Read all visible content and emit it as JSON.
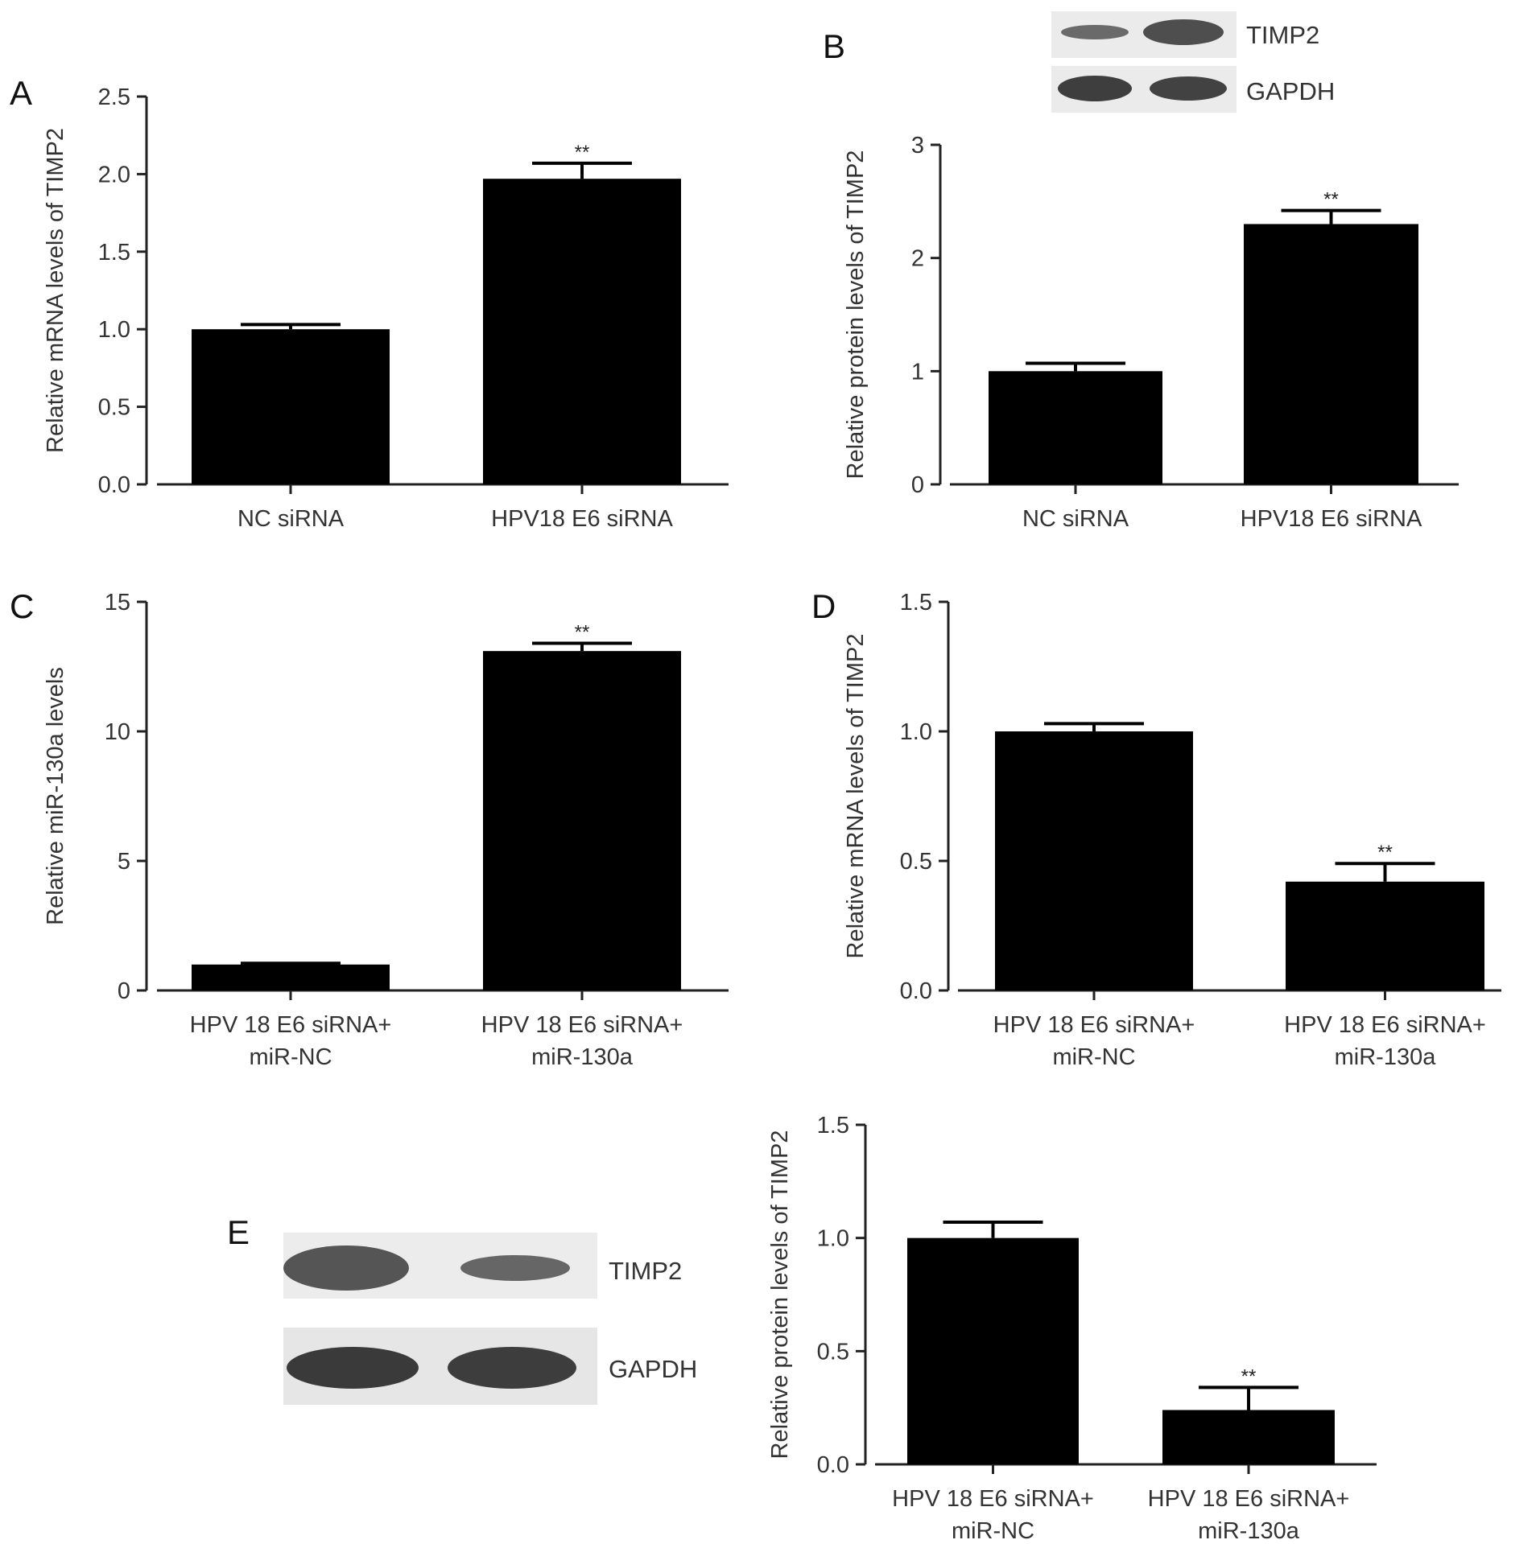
{
  "chart_data": [
    {
      "panel": "A",
      "type": "bar",
      "categories": [
        [
          "NC siRNA"
        ],
        [
          "HPV18 E6 siRNA"
        ]
      ],
      "values": [
        1.0,
        1.97
      ],
      "errors": [
        0.03,
        0.1
      ],
      "significance": [
        "",
        "**"
      ],
      "ylabel": "Relative mRNA levels of TIMP2",
      "ylim": [
        0,
        2.5
      ],
      "yticks": [
        "0.0",
        "0.5",
        "1.0",
        "1.5",
        "2.0",
        "2.5"
      ]
    },
    {
      "panel": "B",
      "type": "bar",
      "categories": [
        [
          "NC siRNA"
        ],
        [
          "HPV18 E6 siRNA"
        ]
      ],
      "values": [
        1.0,
        2.3
      ],
      "errors": [
        0.07,
        0.12
      ],
      "significance": [
        "",
        "**"
      ],
      "ylabel": "Relative protein levels of TIMP2",
      "ylim": [
        0,
        3
      ],
      "yticks": [
        "0",
        "1",
        "2",
        "3"
      ],
      "blot": [
        "TIMP2",
        "GAPDH"
      ]
    },
    {
      "panel": "C",
      "type": "bar",
      "categories": [
        [
          "HPV 18 E6 siRNA+",
          "miR-NC"
        ],
        [
          "HPV 18 E6 siRNA+",
          "miR-130a"
        ]
      ],
      "values": [
        1.0,
        13.1
      ],
      "errors": [
        0.05,
        0.3
      ],
      "significance": [
        "",
        "**"
      ],
      "ylabel": "Relative miR-130a levels",
      "ylim": [
        0,
        15
      ],
      "yticks": [
        "0",
        "5",
        "10",
        "15"
      ]
    },
    {
      "panel": "D",
      "type": "bar",
      "categories": [
        [
          "HPV 18 E6 siRNA+",
          "miR-NC"
        ],
        [
          "HPV 18 E6 siRNA+",
          "miR-130a"
        ]
      ],
      "values": [
        1.0,
        0.42
      ],
      "errors": [
        0.03,
        0.07
      ],
      "significance": [
        "",
        "**"
      ],
      "ylabel": "Relative mRNA levels of TIMP2",
      "ylim": [
        0,
        1.5
      ],
      "yticks": [
        "0.0",
        "0.5",
        "1.0",
        "1.5"
      ]
    },
    {
      "panel": "E",
      "type": "bar",
      "categories": [
        [
          "HPV 18 E6 siRNA+",
          "miR-NC"
        ],
        [
          "HPV 18 E6 siRNA+",
          "miR-130a"
        ]
      ],
      "values": [
        1.0,
        0.24
      ],
      "errors": [
        0.07,
        0.1
      ],
      "significance": [
        "",
        "**"
      ],
      "ylabel": "Relative protein levels of TIMP2",
      "ylim": [
        0,
        1.5
      ],
      "yticks": [
        "0.0",
        "0.5",
        "1.0",
        "1.5"
      ],
      "blot": [
        "TIMP2",
        "GAPDH"
      ]
    }
  ]
}
